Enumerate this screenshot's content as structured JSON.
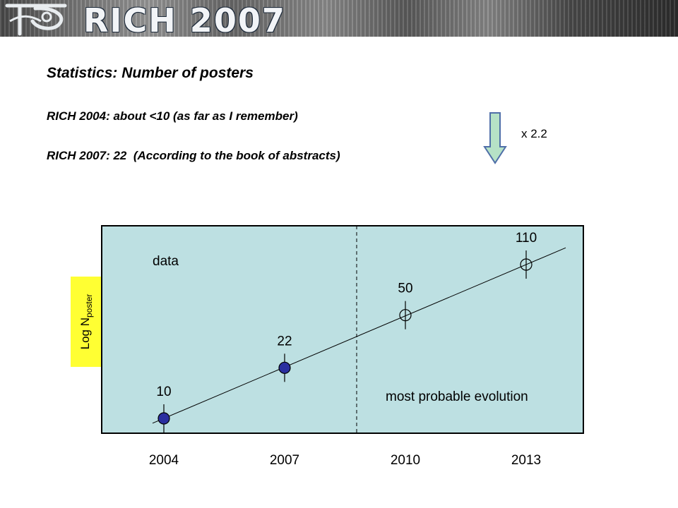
{
  "banner": {
    "title": "RICH 2007"
  },
  "slide": {
    "title": "Statistics: Number of posters",
    "line1": "RICH 2004: about <10 (as far as I remember)",
    "line2": "RICH 2007: 22  (According to the book of abstracts)",
    "factor": "x 2.2"
  },
  "chart_data": {
    "type": "scatter",
    "ylabel_main": "Log N",
    "ylabel_sub": "poster",
    "plot_background": "#bde0e2",
    "region_labels": {
      "data": "data",
      "projection": "most probable evolution"
    },
    "x_ticks": [
      "2004",
      "2007",
      "2010",
      "2013"
    ],
    "points": [
      {
        "x": 2004,
        "y": 10,
        "label": "10",
        "kind": "data"
      },
      {
        "x": 2007,
        "y": 22,
        "label": "22",
        "kind": "data"
      },
      {
        "x": 2010,
        "y": 50,
        "label": "50",
        "kind": "projection"
      },
      {
        "x": 2013,
        "y": 110,
        "label": "110",
        "kind": "projection"
      }
    ],
    "log_scale": true,
    "grid": false,
    "data_marker_color": "#2b2fa0"
  }
}
